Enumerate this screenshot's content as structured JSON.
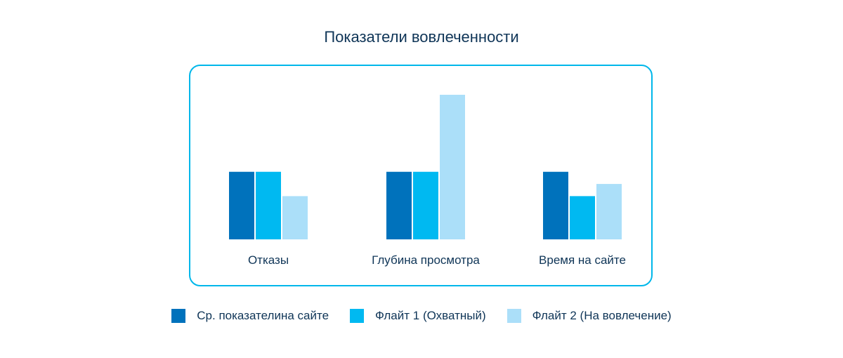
{
  "chart_data": {
    "type": "bar",
    "title": "Показатели вовлеченности",
    "categories": [
      "Отказы",
      "Глубина просмотра",
      "Время на сайте"
    ],
    "series": [
      {
        "name": "Ср. показателина сайте",
        "color": "#0072bc",
        "values": [
          1.0,
          1.0,
          1.0
        ]
      },
      {
        "name": "Флайт 1 (Охватный)",
        "color": "#00b9f1",
        "values": [
          1.0,
          1.0,
          0.64
        ]
      },
      {
        "name": "Флайт 2 (На вовлечение)",
        "color": "#abdff9",
        "values": [
          0.64,
          2.14,
          0.82
        ]
      }
    ],
    "ylim": [
      0,
      2.14
    ],
    "grid": false,
    "legend": "bottom",
    "frame_color": "#00b7ea"
  }
}
